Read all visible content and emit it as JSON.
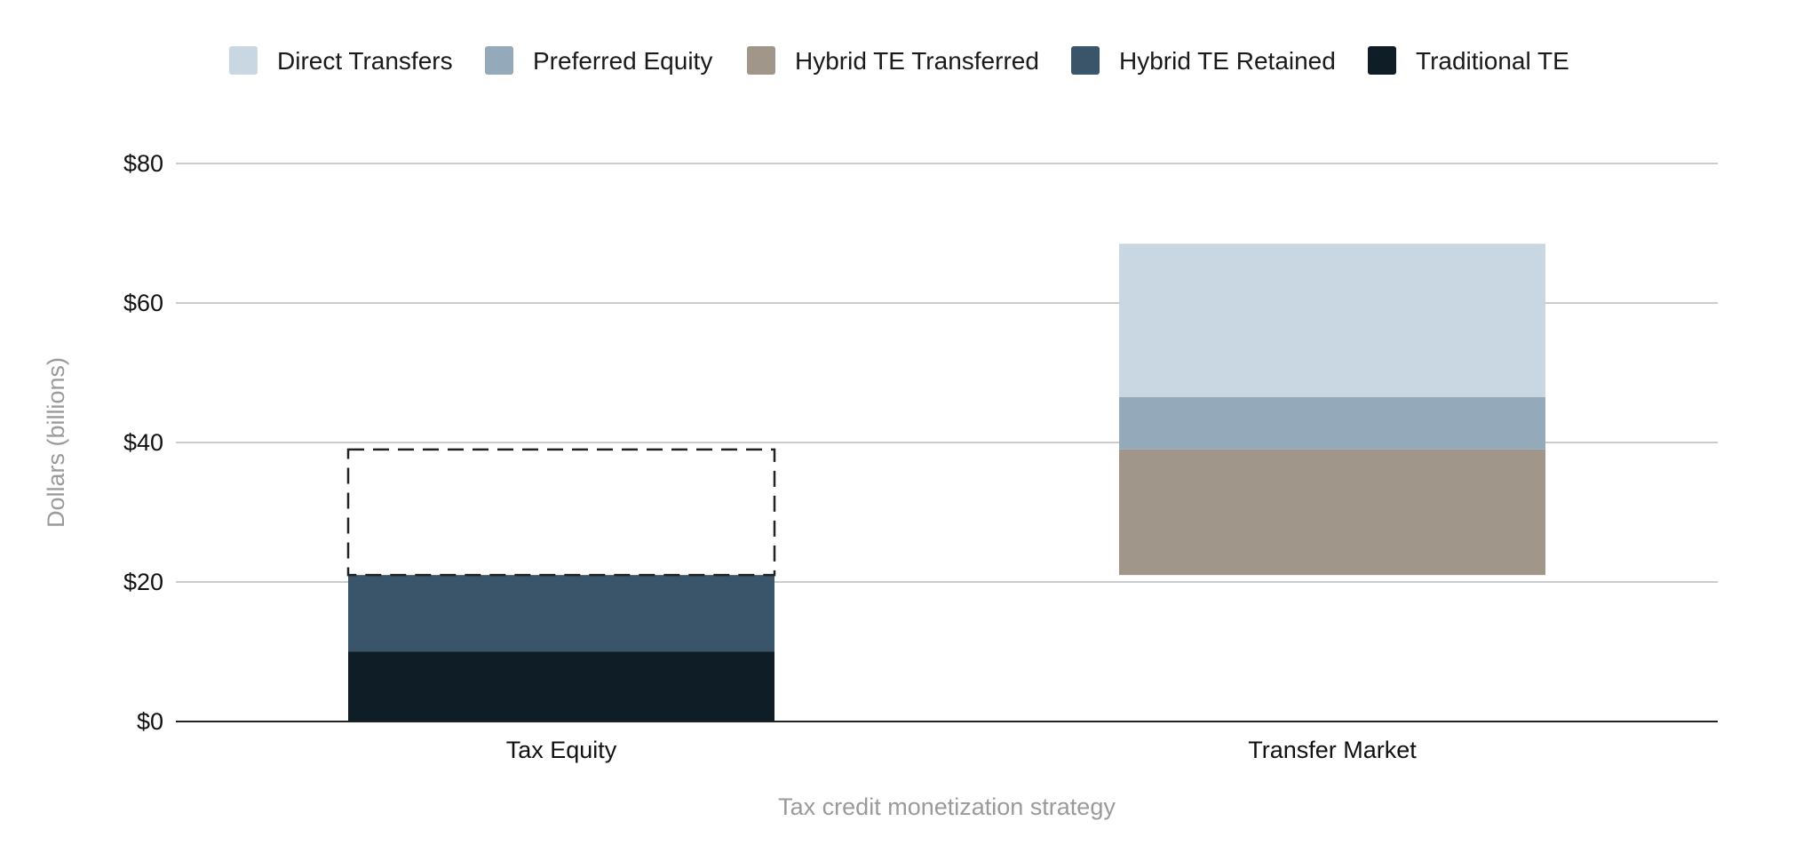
{
  "chart_data": {
    "type": "bar",
    "stacked": true,
    "title": "",
    "xlabel": "Tax credit monetization strategy",
    "ylabel": "Dollars (billions)",
    "ylim": [
      0,
      80
    ],
    "yticks": [
      0,
      20,
      40,
      60,
      80
    ],
    "ytick_labels": [
      "$0",
      "$20",
      "$40",
      "$60",
      "$80"
    ],
    "grid": true,
    "legend_position": "top",
    "categories": [
      "Tax Equity",
      "Transfer Market"
    ],
    "series": [
      {
        "name": "Traditional TE",
        "color": "#0f1d26",
        "segments": [
          [
            0,
            10
          ],
          null
        ]
      },
      {
        "name": "Hybrid TE Retained",
        "color": "#3a5569",
        "segments": [
          [
            10,
            21
          ],
          null
        ]
      },
      {
        "name": "Hybrid TE Transferred",
        "color": "#a09689",
        "segments": [
          null,
          [
            21,
            39
          ]
        ]
      },
      {
        "name": "Preferred Equity",
        "color": "#94aaba",
        "segments": [
          null,
          [
            39,
            46.5
          ]
        ]
      },
      {
        "name": "Direct Transfers",
        "color": "#c8d7e1",
        "segments": [
          null,
          [
            46.5,
            68.5
          ]
        ]
      }
    ],
    "legend_order": [
      "Direct Transfers",
      "Preferred Equity",
      "Hybrid TE Transferred",
      "Hybrid TE Retained",
      "Traditional TE"
    ],
    "annotations": [
      {
        "type": "dashed-outline",
        "category": "Tax Equity",
        "range": [
          21,
          39
        ],
        "color": "#222222"
      }
    ]
  }
}
